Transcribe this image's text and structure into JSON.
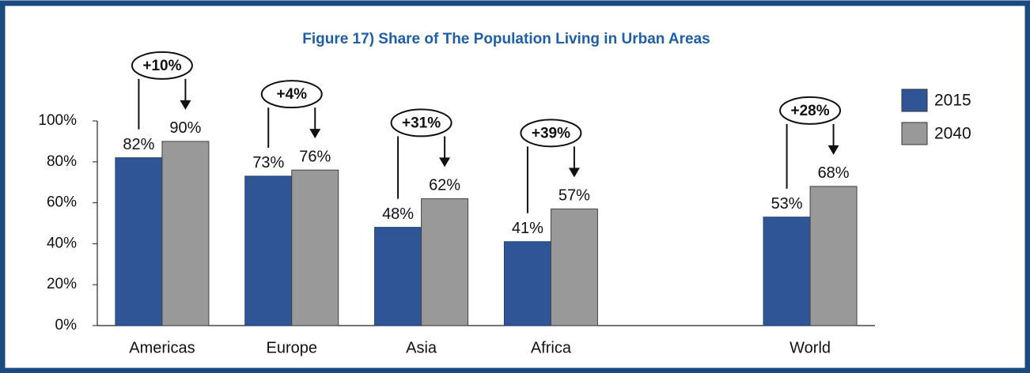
{
  "chart_data": {
    "type": "bar",
    "title": "Figure 17) Share of The Population Living in Urban Areas",
    "categories": [
      "Americas",
      "Europe",
      "Asia",
      "Africa",
      null,
      "World"
    ],
    "series": [
      {
        "name": "2015",
        "color": "#2f5597",
        "values": [
          82,
          73,
          48,
          41,
          null,
          53
        ],
        "value_labels": [
          "82%",
          "73%",
          "48%",
          "41%",
          null,
          "53%"
        ]
      },
      {
        "name": "2040",
        "color": "#999999",
        "values": [
          90,
          76,
          62,
          57,
          null,
          68
        ],
        "value_labels": [
          "90%",
          "76%",
          "62%",
          "57%",
          null,
          "68%"
        ]
      }
    ],
    "annotations": [
      "+10%",
      "+4%",
      "+31%",
      "+39%",
      null,
      "+28%"
    ],
    "ylim": [
      0,
      100
    ],
    "yticks": [
      {
        "value": 0,
        "label": "0%"
      },
      {
        "value": 20,
        "label": "20%"
      },
      {
        "value": 40,
        "label": "40%"
      },
      {
        "value": 60,
        "label": "60%"
      },
      {
        "value": 80,
        "label": "80%"
      },
      {
        "value": 100,
        "label": "100%"
      }
    ],
    "legend": "right"
  }
}
